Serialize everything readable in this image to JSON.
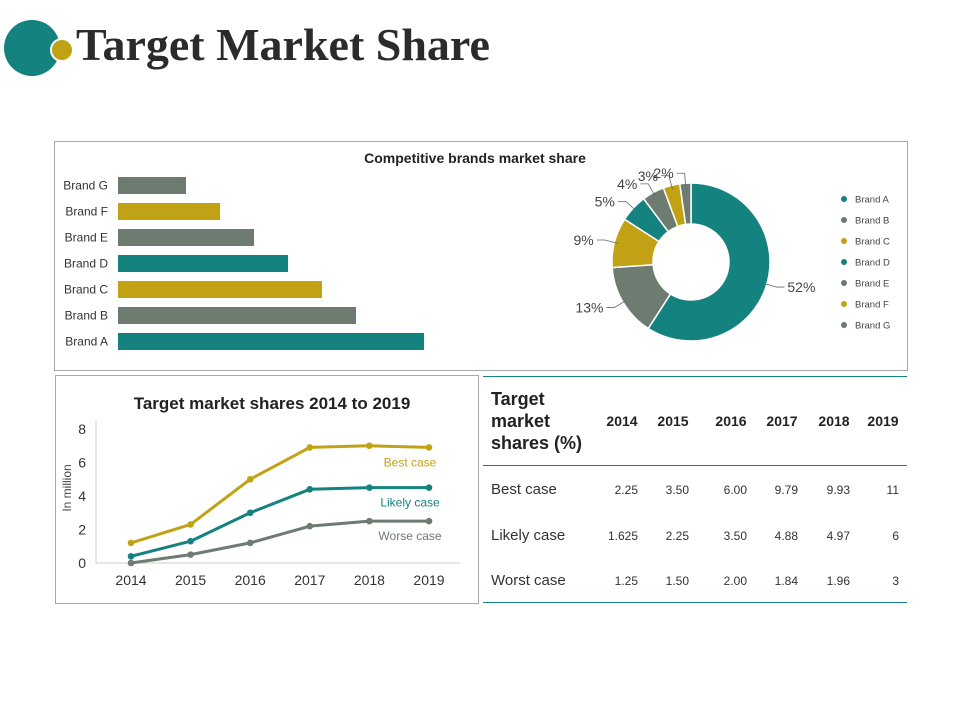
{
  "page": {
    "title": "Target Market Share"
  },
  "colors": {
    "teal": "#14827f",
    "gold": "#c2a215",
    "gray": "#6d7b71"
  },
  "chart_data": [
    {
      "type": "bar",
      "orientation": "horizontal",
      "title": "Competitive brands market share",
      "categories": [
        "Brand G",
        "Brand F",
        "Brand E",
        "Brand D",
        "Brand C",
        "Brand B",
        "Brand A"
      ],
      "values": [
        2,
        3,
        4,
        5,
        6,
        7,
        9
      ],
      "xlim": [
        0,
        10
      ],
      "colors": [
        "#6d7b71",
        "#c2a215",
        "#6d7b71",
        "#14827f",
        "#c2a215",
        "#6d7b71",
        "#14827f"
      ]
    },
    {
      "type": "pie",
      "style": "donut",
      "labels": [
        "Brand A",
        "Brand B",
        "Brand C",
        "Brand D",
        "Brand E",
        "Brand F",
        "Brand G"
      ],
      "values": [
        52,
        13,
        9,
        5,
        4,
        3,
        2
      ],
      "value_labels": [
        "52%",
        "13%",
        "9%",
        "5%",
        "4%",
        "3%",
        "2%"
      ],
      "colors": [
        "#14827f",
        "#6d7b71",
        "#c2a215",
        "#14827f",
        "#6d7b71",
        "#c2a215",
        "#6d7b71"
      ],
      "legend": "right"
    },
    {
      "type": "line",
      "title": "Target market shares 2014 to 2019",
      "x": [
        "2014",
        "2015",
        "2016",
        "2017",
        "2018",
        "2019"
      ],
      "ylabel": "In million",
      "ylim": [
        0,
        8
      ],
      "yticks": [
        "0",
        "2",
        "4",
        "6",
        "8"
      ],
      "series": [
        {
          "name": "Best case",
          "values": [
            1.2,
            2.3,
            5.0,
            6.9,
            7.0,
            6.9
          ],
          "color": "#c2a215"
        },
        {
          "name": "Likely case",
          "values": [
            0.4,
            1.3,
            3.0,
            4.4,
            4.5,
            4.5
          ],
          "color": "#14827f"
        },
        {
          "name": "Worse case",
          "values": [
            0.0,
            0.5,
            1.2,
            2.2,
            2.5,
            2.5
          ],
          "color": "#6d7b71"
        }
      ]
    },
    {
      "type": "table",
      "header": "Target market shares (%)",
      "years": [
        "2014",
        "2015",
        "2016",
        "2017",
        "2018",
        "2019"
      ],
      "rows": [
        {
          "label": "Best case",
          "cells": [
            "2.25",
            "3.50",
            "6.00",
            "9.79",
            "9.93",
            "11"
          ]
        },
        {
          "label": "Likely case",
          "cells": [
            "1.625",
            "2.25",
            "3.50",
            "4.88",
            "4.97",
            "6"
          ]
        },
        {
          "label": "Worst case",
          "cells": [
            "1.25",
            "1.50",
            "2.00",
            "1.84",
            "1.96",
            "3"
          ]
        }
      ]
    }
  ]
}
